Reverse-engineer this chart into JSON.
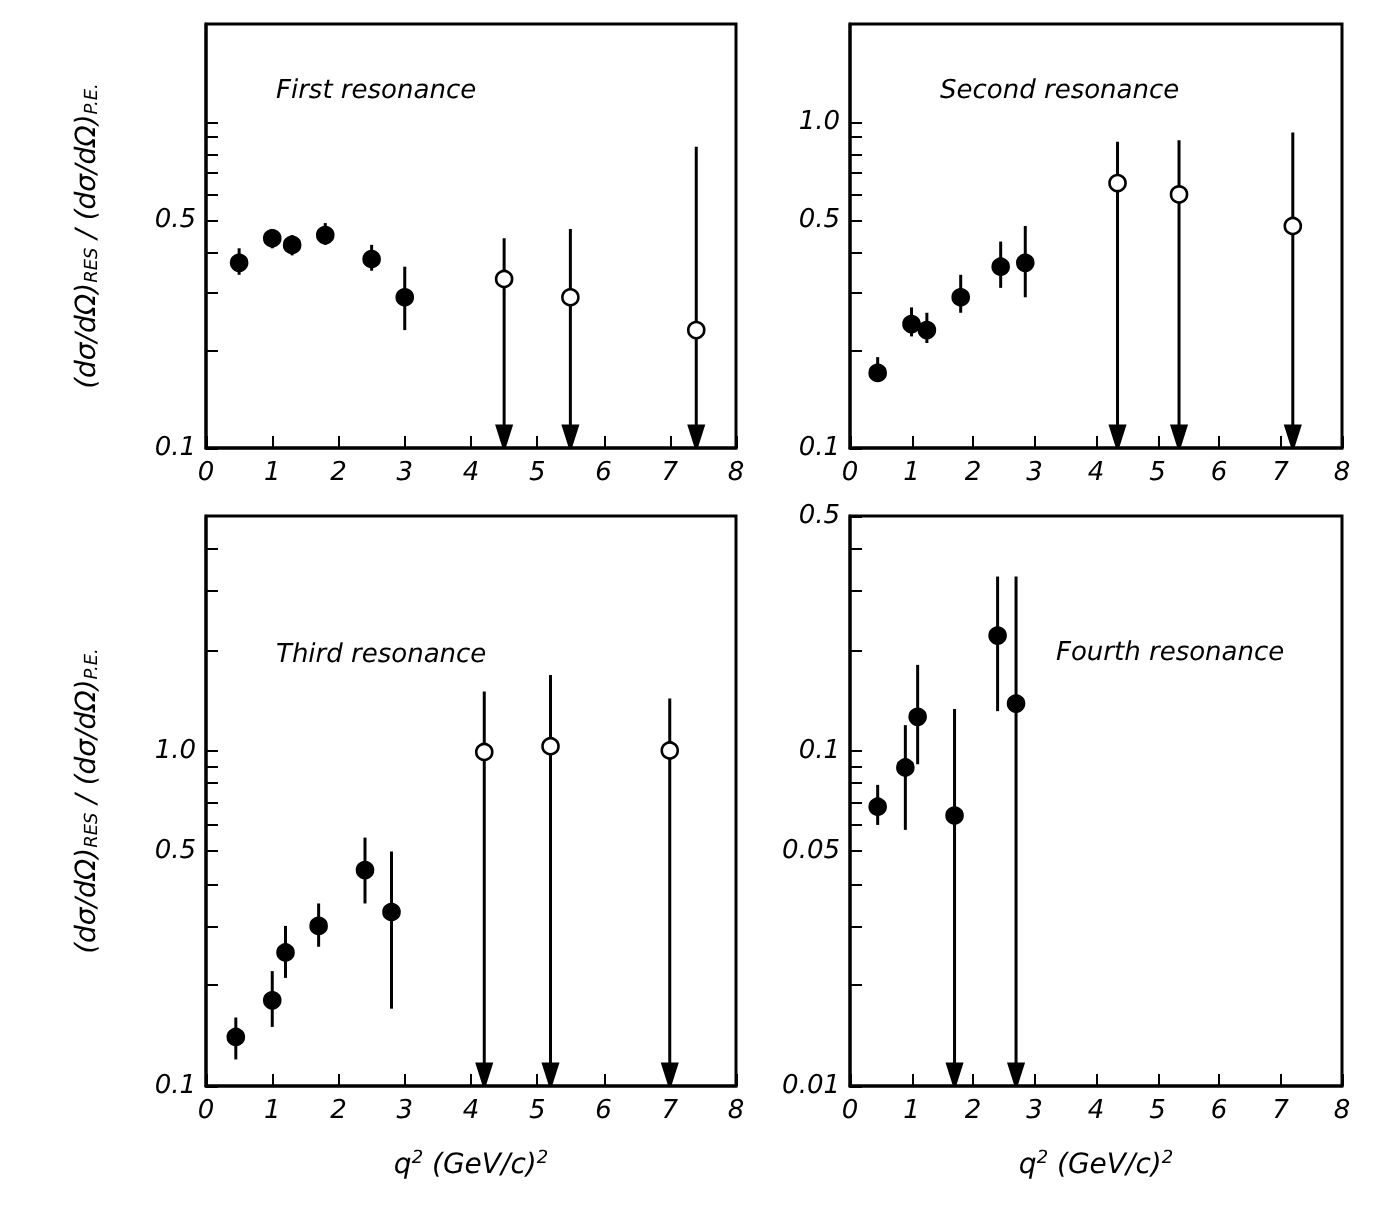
{
  "chart_data": [
    {
      "type": "scatter",
      "title": "First resonance",
      "ylabel": "(dσ/dΩ)$_{RES}$ / (dσ/dΩ)$_{P.E.}$",
      "marker": "circle",
      "log": true,
      "xlim": [
        0,
        8
      ],
      "xticks": [
        0,
        1,
        2,
        3,
        4,
        5,
        6,
        7,
        8
      ],
      "ylim": [
        0.1,
        2
      ],
      "yticks": [
        0.1,
        {
          "value": 0.2,
          "label": null
        },
        {
          "value": 0.3,
          "label": null
        },
        {
          "value": 0.4,
          "label": null
        },
        0.5,
        {
          "value": 0.6,
          "label": null
        },
        {
          "value": 0.7,
          "label": null
        },
        {
          "value": 0.8,
          "label": null
        },
        {
          "value": 0.9,
          "label": null
        },
        {
          "value": 1,
          "label": null
        }
      ],
      "series": [
        {
          "color": "#000000",
          "x": [
            0.5,
            1.0,
            1.3,
            1.8,
            2.5,
            3.0
          ],
          "values": [
            0.37,
            0.44,
            0.42,
            0.45,
            0.38,
            0.29
          ],
          "errors": [
            [
              0.34,
              0.41
            ],
            [
              0.41,
              0.47
            ],
            [
              0.39,
              0.45
            ],
            [
              0.42,
              0.49
            ],
            [
              0.35,
              0.42
            ],
            [
              0.23,
              0.36
            ]
          ]
        },
        {
          "color": "#ffffff",
          "x": [
            4.5,
            5.5,
            7.4
          ],
          "values": [
            0.33,
            0.29,
            0.23
          ],
          "errors": [
            [
              0.1,
              0.44
            ],
            [
              0.1,
              0.47
            ],
            [
              0.1,
              0.84
            ]
          ]
        }
      ]
    },
    {
      "type": "scatter",
      "title": "Second resonance",
      "marker": "circle",
      "log": true,
      "xlim": [
        0,
        8
      ],
      "xticks": [
        0,
        1,
        2,
        3,
        4,
        5,
        6,
        7,
        8
      ],
      "ylim": [
        0.1,
        2
      ],
      "yticks": [
        0.1,
        {
          "value": 0.2,
          "label": null
        },
        {
          "value": 0.3,
          "label": null
        },
        {
          "value": 0.4,
          "label": null
        },
        0.5,
        {
          "value": 0.6,
          "label": null
        },
        {
          "value": 0.7,
          "label": null
        },
        {
          "value": 0.8,
          "label": null
        },
        {
          "value": 0.9,
          "label": null
        },
        {
          "value": 1,
          "label": "1.0"
        }
      ],
      "series": [
        {
          "color": "#000000",
          "x": [
            0.45,
            1.0,
            1.25,
            1.8,
            2.45,
            2.85
          ],
          "values": [
            0.17,
            0.24,
            0.23,
            0.29,
            0.36,
            0.37
          ],
          "errors": [
            [
              0.16,
              0.19
            ],
            [
              0.22,
              0.27
            ],
            [
              0.21,
              0.26
            ],
            [
              0.26,
              0.34
            ],
            [
              0.31,
              0.43
            ],
            [
              0.29,
              0.48
            ]
          ]
        },
        {
          "color": "#ffffff",
          "x": [
            4.35,
            5.35,
            7.2
          ],
          "values": [
            0.65,
            0.6,
            0.48
          ],
          "errors": [
            [
              0.1,
              0.87
            ],
            [
              0.1,
              0.88
            ],
            [
              0.1,
              0.93
            ]
          ]
        }
      ]
    },
    {
      "type": "scatter",
      "title": "Third resonance",
      "ylabel": "(dσ/dΩ)$_{RES}$ / (dσ/dΩ)$_{P.E.}$",
      "xlabel": "q$^{2}$ (GeV/c)$^{2}$",
      "marker": "circle",
      "log": true,
      "xlim": [
        0,
        8
      ],
      "xticks": [
        0,
        1,
        2,
        3,
        4,
        5,
        6,
        7,
        8
      ],
      "ylim": [
        0.1,
        5
      ],
      "yticks": [
        0.1,
        {
          "value": 0.2,
          "label": null
        },
        {
          "value": 0.3,
          "label": null
        },
        {
          "value": 0.4,
          "label": null
        },
        0.5,
        {
          "value": 0.6,
          "label": null
        },
        {
          "value": 0.7,
          "label": null
        },
        {
          "value": 0.8,
          "label": null
        },
        {
          "value": 0.9,
          "label": null
        },
        {
          "value": 1,
          "label": "1.0"
        },
        {
          "value": 2,
          "label": null
        },
        {
          "value": 3,
          "label": null
        },
        {
          "value": 4,
          "label": null
        }
      ],
      "series": [
        {
          "color": "#000000",
          "x": [
            0.45,
            1.0,
            1.2,
            1.7,
            2.4,
            2.8
          ],
          "values": [
            0.14,
            0.18,
            0.25,
            0.3,
            0.44,
            0.33
          ],
          "errors": [
            [
              0.12,
              0.16
            ],
            [
              0.15,
              0.22
            ],
            [
              0.21,
              0.3
            ],
            [
              0.26,
              0.35
            ],
            [
              0.35,
              0.55
            ],
            [
              0.17,
              0.5
            ]
          ]
        },
        {
          "color": "#ffffff",
          "x": [
            4.2,
            5.2,
            7.0
          ],
          "values": [
            0.99,
            1.03,
            1.0
          ],
          "errors": [
            [
              0.1,
              1.5
            ],
            [
              0.1,
              1.68
            ],
            [
              0.1,
              1.43
            ]
          ]
        }
      ]
    },
    {
      "type": "scatter",
      "title": "Fourth resonance",
      "xlabel": "q$^{2}$ (GeV/c)$^{2}$",
      "marker": "circle",
      "log": true,
      "xlim": [
        0,
        8
      ],
      "xticks": [
        0,
        1,
        2,
        3,
        4,
        5,
        6,
        7,
        8
      ],
      "ylim": [
        0.01,
        0.5
      ],
      "yticks": [
        0.01,
        {
          "value": 0.02,
          "label": null
        },
        {
          "value": 0.03,
          "label": null
        },
        {
          "value": 0.04,
          "label": null
        },
        0.05,
        {
          "value": 0.06,
          "label": null
        },
        {
          "value": 0.07,
          "label": null
        },
        {
          "value": 0.08,
          "label": null
        },
        {
          "value": 0.09,
          "label": null
        },
        0.1,
        {
          "value": 0.2,
          "label": null
        },
        {
          "value": 0.3,
          "label": null
        },
        {
          "value": 0.4,
          "label": null
        },
        0.5
      ],
      "series": [
        {
          "color": "#000000",
          "x": [
            0.45,
            0.9,
            1.1,
            1.7,
            2.4,
            2.7
          ],
          "values": [
            0.068,
            0.089,
            0.126,
            0.064,
            0.22,
            0.138
          ],
          "errors": [
            [
              0.06,
              0.079
            ],
            [
              0.058,
              0.119
            ],
            [
              0.091,
              0.18
            ],
            [
              0.01,
              0.133
            ],
            [
              0.131,
              0.33
            ],
            [
              0.01,
              0.33
            ]
          ]
        }
      ]
    }
  ]
}
